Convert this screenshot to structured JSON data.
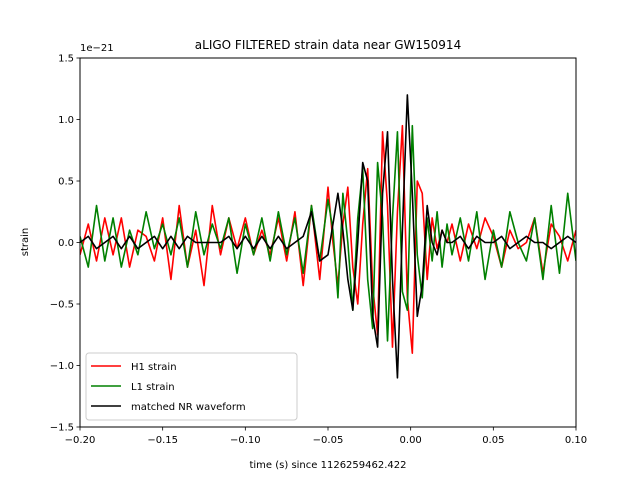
{
  "chart_data": {
    "type": "line",
    "title": "aLIGO FILTERED strain data near GW150914",
    "xlabel": "time (s) since 1126259462.422",
    "ylabel": "strain",
    "y_offset_label": "1e−21",
    "xlim": [
      -0.2,
      0.1
    ],
    "ylim": [
      -1.5,
      1.5
    ],
    "x_ticks": [
      -0.2,
      -0.15,
      -0.1,
      -0.05,
      0.0,
      0.05,
      0.1
    ],
    "x_tick_labels": [
      "−0.20",
      "−0.15",
      "−0.10",
      "−0.05",
      "0.00",
      "0.05",
      "0.10"
    ],
    "y_ticks": [
      -1.5,
      -1.0,
      -0.5,
      0.0,
      0.5,
      1.0,
      1.5
    ],
    "y_tick_labels": [
      "−1.5",
      "−1.0",
      "−0.5",
      "0.0",
      "0.5",
      "1.0",
      "1.5"
    ],
    "grid": false,
    "legend_position": "lower-left",
    "series": [
      {
        "name": "H1 strain",
        "color": "#ff0000",
        "x": [
          -0.2,
          -0.195,
          -0.19,
          -0.185,
          -0.18,
          -0.175,
          -0.17,
          -0.165,
          -0.16,
          -0.155,
          -0.15,
          -0.145,
          -0.14,
          -0.135,
          -0.13,
          -0.125,
          -0.12,
          -0.115,
          -0.11,
          -0.105,
          -0.1,
          -0.095,
          -0.09,
          -0.085,
          -0.08,
          -0.075,
          -0.07,
          -0.065,
          -0.06,
          -0.055,
          -0.05,
          -0.047,
          -0.044,
          -0.041,
          -0.038,
          -0.035,
          -0.032,
          -0.029,
          -0.026,
          -0.023,
          -0.02,
          -0.017,
          -0.014,
          -0.011,
          -0.008,
          -0.005,
          -0.002,
          0.001,
          0.004,
          0.007,
          0.01,
          0.013,
          0.016,
          0.019,
          0.022,
          0.025,
          0.03,
          0.035,
          0.04,
          0.045,
          0.05,
          0.055,
          0.06,
          0.065,
          0.07,
          0.075,
          0.08,
          0.085,
          0.09,
          0.095,
          0.1
        ],
        "y": [
          -0.1,
          0.15,
          -0.15,
          0.2,
          -0.1,
          0.2,
          -0.2,
          0.1,
          0.05,
          -0.15,
          0.2,
          -0.3,
          0.3,
          -0.2,
          0.1,
          -0.35,
          0.3,
          -0.1,
          0.2,
          -0.05,
          0.2,
          -0.1,
          0.1,
          -0.1,
          0.2,
          -0.15,
          0.25,
          -0.35,
          0.3,
          -0.3,
          0.45,
          0.0,
          -0.35,
          0.15,
          0.45,
          -0.2,
          -0.5,
          0.15,
          0.6,
          -0.35,
          -0.75,
          0.9,
          0.3,
          -0.85,
          0.25,
          0.95,
          -0.45,
          -0.9,
          0.5,
          0.4,
          -0.3,
          0.2,
          -0.05,
          0.1,
          0.0,
          0.15,
          -0.15,
          0.15,
          -0.05,
          0.2,
          0.05,
          -0.2,
          0.1,
          -0.05,
          0.0,
          0.2,
          -0.25,
          0.15,
          0.05,
          -0.15,
          0.1
        ]
      },
      {
        "name": "L1 strain",
        "color": "#008000",
        "x": [
          -0.2,
          -0.195,
          -0.19,
          -0.185,
          -0.18,
          -0.175,
          -0.17,
          -0.165,
          -0.16,
          -0.155,
          -0.15,
          -0.145,
          -0.14,
          -0.135,
          -0.13,
          -0.125,
          -0.12,
          -0.115,
          -0.11,
          -0.105,
          -0.1,
          -0.095,
          -0.09,
          -0.085,
          -0.08,
          -0.075,
          -0.07,
          -0.065,
          -0.06,
          -0.055,
          -0.05,
          -0.047,
          -0.044,
          -0.041,
          -0.038,
          -0.035,
          -0.032,
          -0.029,
          -0.026,
          -0.023,
          -0.02,
          -0.017,
          -0.014,
          -0.011,
          -0.008,
          -0.005,
          -0.002,
          0.001,
          0.004,
          0.007,
          0.01,
          0.013,
          0.016,
          0.019,
          0.022,
          0.025,
          0.03,
          0.035,
          0.04,
          0.045,
          0.05,
          0.055,
          0.06,
          0.065,
          0.07,
          0.075,
          0.08,
          0.085,
          0.09,
          0.095,
          0.1
        ],
        "y": [
          0.05,
          -0.2,
          0.3,
          -0.15,
          0.2,
          -0.2,
          0.1,
          -0.1,
          0.25,
          -0.05,
          0.15,
          -0.1,
          0.2,
          -0.2,
          0.25,
          -0.1,
          0.15,
          -0.05,
          0.2,
          -0.25,
          0.15,
          -0.1,
          0.2,
          -0.15,
          0.25,
          -0.1,
          0.2,
          -0.25,
          0.3,
          -0.15,
          0.35,
          0.1,
          -0.45,
          0.4,
          0.0,
          -0.55,
          0.2,
          0.6,
          -0.3,
          -0.7,
          0.65,
          0.2,
          -0.8,
          0.2,
          0.9,
          -0.4,
          -0.55,
          0.95,
          -0.1,
          -0.45,
          0.2,
          -0.15,
          0.25,
          -0.2,
          0.15,
          -0.1,
          0.2,
          -0.15,
          0.25,
          -0.3,
          0.1,
          -0.2,
          0.25,
          0.0,
          -0.15,
          0.2,
          -0.3,
          0.3,
          -0.25,
          0.4,
          -0.15
        ]
      },
      {
        "name": "matched NR waveform",
        "color": "#000000",
        "x": [
          -0.2,
          -0.195,
          -0.19,
          -0.185,
          -0.18,
          -0.175,
          -0.17,
          -0.165,
          -0.16,
          -0.155,
          -0.15,
          -0.145,
          -0.14,
          -0.135,
          -0.13,
          -0.125,
          -0.12,
          -0.115,
          -0.11,
          -0.105,
          -0.1,
          -0.095,
          -0.09,
          -0.085,
          -0.08,
          -0.075,
          -0.07,
          -0.065,
          -0.06,
          -0.055,
          -0.05,
          -0.047,
          -0.044,
          -0.041,
          -0.038,
          -0.035,
          -0.032,
          -0.029,
          -0.026,
          -0.023,
          -0.02,
          -0.017,
          -0.014,
          -0.011,
          -0.008,
          -0.005,
          -0.002,
          0.001,
          0.004,
          0.007,
          0.01,
          0.013,
          0.016,
          0.019,
          0.022,
          0.025,
          0.03,
          0.035,
          0.04,
          0.045,
          0.05,
          0.055,
          0.06,
          0.065,
          0.07,
          0.075,
          0.08,
          0.085,
          0.09,
          0.095,
          0.1
        ],
        "y": [
          0.0,
          0.05,
          -0.05,
          0.0,
          0.05,
          -0.05,
          0.05,
          -0.05,
          0.0,
          0.05,
          -0.05,
          0.05,
          -0.05,
          0.05,
          0.0,
          0.0,
          0.0,
          0.0,
          0.05,
          -0.05,
          0.05,
          -0.05,
          0.05,
          -0.05,
          0.05,
          -0.05,
          0.0,
          0.05,
          0.25,
          -0.15,
          -0.1,
          0.15,
          0.4,
          0.1,
          -0.3,
          -0.55,
          0.0,
          0.65,
          0.5,
          -0.6,
          -0.85,
          0.4,
          0.9,
          -0.3,
          -1.1,
          0.1,
          1.2,
          0.4,
          -0.6,
          -0.35,
          0.3,
          0.0,
          -0.1,
          0.1,
          0.0,
          0.0,
          0.05,
          -0.05,
          0.05,
          0.0,
          0.0,
          0.05,
          -0.05,
          0.0,
          0.05,
          0.0,
          0.0,
          -0.05,
          0.0,
          0.05,
          0.0
        ]
      }
    ]
  }
}
